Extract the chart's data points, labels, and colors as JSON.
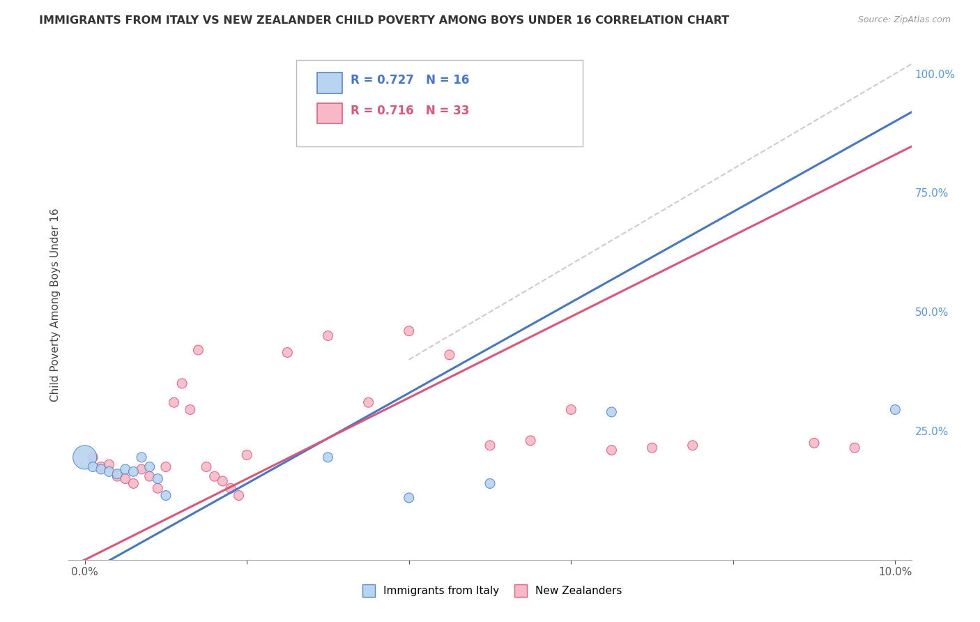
{
  "title": "IMMIGRANTS FROM ITALY VS NEW ZEALANDER CHILD POVERTY AMONG BOYS UNDER 16 CORRELATION CHART",
  "source": "Source: ZipAtlas.com",
  "ylabel": "Child Poverty Among Boys Under 16",
  "legend_labels": [
    "Immigrants from Italy",
    "New Zealanders"
  ],
  "R_blue": 0.727,
  "N_blue": 16,
  "R_pink": 0.716,
  "N_pink": 33,
  "blue_fill": "#b8d4f0",
  "pink_fill": "#f8b8c8",
  "blue_edge": "#5588cc",
  "pink_edge": "#e06080",
  "blue_line": "#4477cc",
  "pink_line": "#dd5577",
  "diag_color": "#cccccc",
  "grid_color": "#cccccc",
  "right_tick_color": "#5599ee",
  "blue_scatter_x": [
    0.0,
    0.001,
    0.002,
    0.003,
    0.004,
    0.005,
    0.006,
    0.007,
    0.008,
    0.009,
    0.01,
    0.03,
    0.04,
    0.05,
    0.065,
    0.1
  ],
  "blue_scatter_y": [
    0.195,
    0.175,
    0.17,
    0.165,
    0.16,
    0.17,
    0.165,
    0.195,
    0.175,
    0.15,
    0.115,
    0.195,
    0.11,
    0.14,
    0.29,
    0.295
  ],
  "blue_scatter_s": [
    600,
    100,
    100,
    100,
    100,
    100,
    100,
    100,
    100,
    100,
    100,
    100,
    100,
    100,
    100,
    100
  ],
  "pink_scatter_x": [
    0.001,
    0.002,
    0.003,
    0.004,
    0.005,
    0.006,
    0.007,
    0.008,
    0.009,
    0.01,
    0.011,
    0.012,
    0.013,
    0.014,
    0.015,
    0.016,
    0.017,
    0.018,
    0.019,
    0.02,
    0.025,
    0.03,
    0.035,
    0.04,
    0.045,
    0.05,
    0.055,
    0.06,
    0.065,
    0.07,
    0.075,
    0.09,
    0.095
  ],
  "pink_scatter_y": [
    0.195,
    0.175,
    0.18,
    0.155,
    0.15,
    0.14,
    0.17,
    0.155,
    0.13,
    0.175,
    0.31,
    0.35,
    0.295,
    0.42,
    0.175,
    0.155,
    0.145,
    0.13,
    0.115,
    0.2,
    0.415,
    0.45,
    0.31,
    0.46,
    0.41,
    0.22,
    0.23,
    0.295,
    0.21,
    0.215,
    0.22,
    0.225,
    0.215
  ],
  "pink_scatter_s": [
    100,
    100,
    100,
    100,
    100,
    100,
    100,
    100,
    100,
    100,
    100,
    100,
    100,
    100,
    100,
    100,
    100,
    100,
    100,
    100,
    100,
    100,
    100,
    100,
    100,
    100,
    100,
    100,
    100,
    100,
    100,
    100,
    100
  ],
  "blue_regr": {
    "m": 9.5,
    "b": -0.05
  },
  "pink_regr": {
    "m": 8.5,
    "b": -0.02
  },
  "xlim": [
    0.0,
    0.1
  ],
  "ylim": [
    0.0,
    1.0
  ],
  "yticks_right": [
    0.25,
    0.5,
    0.75,
    1.0
  ],
  "figsize": [
    14.06,
    8.92
  ],
  "dpi": 100
}
